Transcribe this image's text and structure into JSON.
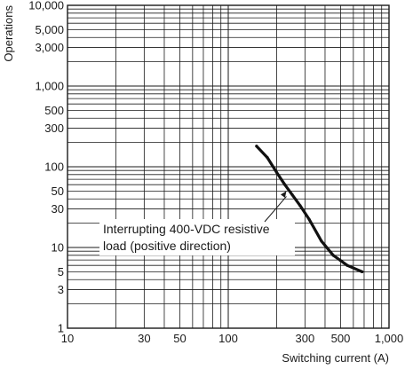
{
  "chart_data": {
    "type": "line",
    "xlabel": "Switching current (A)",
    "ylabel": "Operations",
    "x_scale": "log",
    "y_scale": "log",
    "xlim": [
      10,
      1000
    ],
    "ylim": [
      1,
      10000
    ],
    "x_tick_values": [
      10,
      30,
      50,
      100,
      300,
      500,
      1000
    ],
    "x_tick_labels": [
      "10",
      "30",
      "50",
      "100",
      "300",
      "500",
      "1,000"
    ],
    "y_tick_values": [
      1,
      3,
      5,
      10,
      30,
      50,
      100,
      300,
      500,
      1000,
      3000,
      5000,
      10000
    ],
    "y_tick_labels": [
      "1",
      "3",
      "5",
      "10",
      "30",
      "50",
      "100",
      "300",
      "500",
      "1,000",
      "3,000",
      "5,000",
      "10,000"
    ],
    "grid": true,
    "series": [
      {
        "x": [
          150,
          175,
          200,
          225,
          250,
          280,
          320,
          380,
          450,
          550,
          680
        ],
        "y": [
          180,
          130,
          85,
          60,
          45,
          33,
          22,
          12,
          8,
          6,
          5
        ]
      }
    ],
    "annotation": {
      "lines": [
        "Interrupting 400-VDC resistive",
        "load (positive direction)"
      ],
      "arrow_to": {
        "x": 230,
        "y": 50
      }
    }
  }
}
